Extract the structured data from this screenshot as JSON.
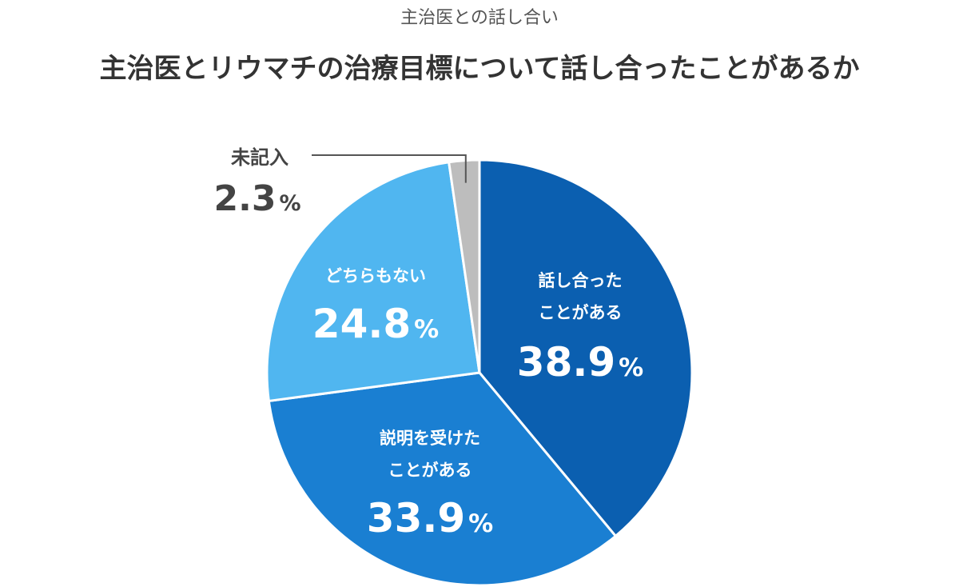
{
  "header": {
    "subtitle": "主治医との話し合い",
    "title": "主治医とリウマチの治療目標について話し合ったことがあるか"
  },
  "chart_data": {
    "type": "pie",
    "slices": [
      {
        "label_lines": [
          "話し合った",
          "ことがある"
        ],
        "value": 38.9,
        "value_text": "38.9",
        "color": "#0b5fb0"
      },
      {
        "label_lines": [
          "説明を受けた",
          "ことがある"
        ],
        "value": 33.9,
        "value_text": "33.9",
        "color": "#1a7fd2"
      },
      {
        "label_lines": [
          "どちらもない"
        ],
        "value": 24.8,
        "value_text": "24.8",
        "color": "#50b6f0"
      },
      {
        "label_lines": [
          "未記入"
        ],
        "value": 2.3,
        "value_text": "2.3",
        "color": "#bdbdbd"
      }
    ],
    "unit": "%",
    "start": "12 o'clock",
    "direction": "clockwise"
  }
}
